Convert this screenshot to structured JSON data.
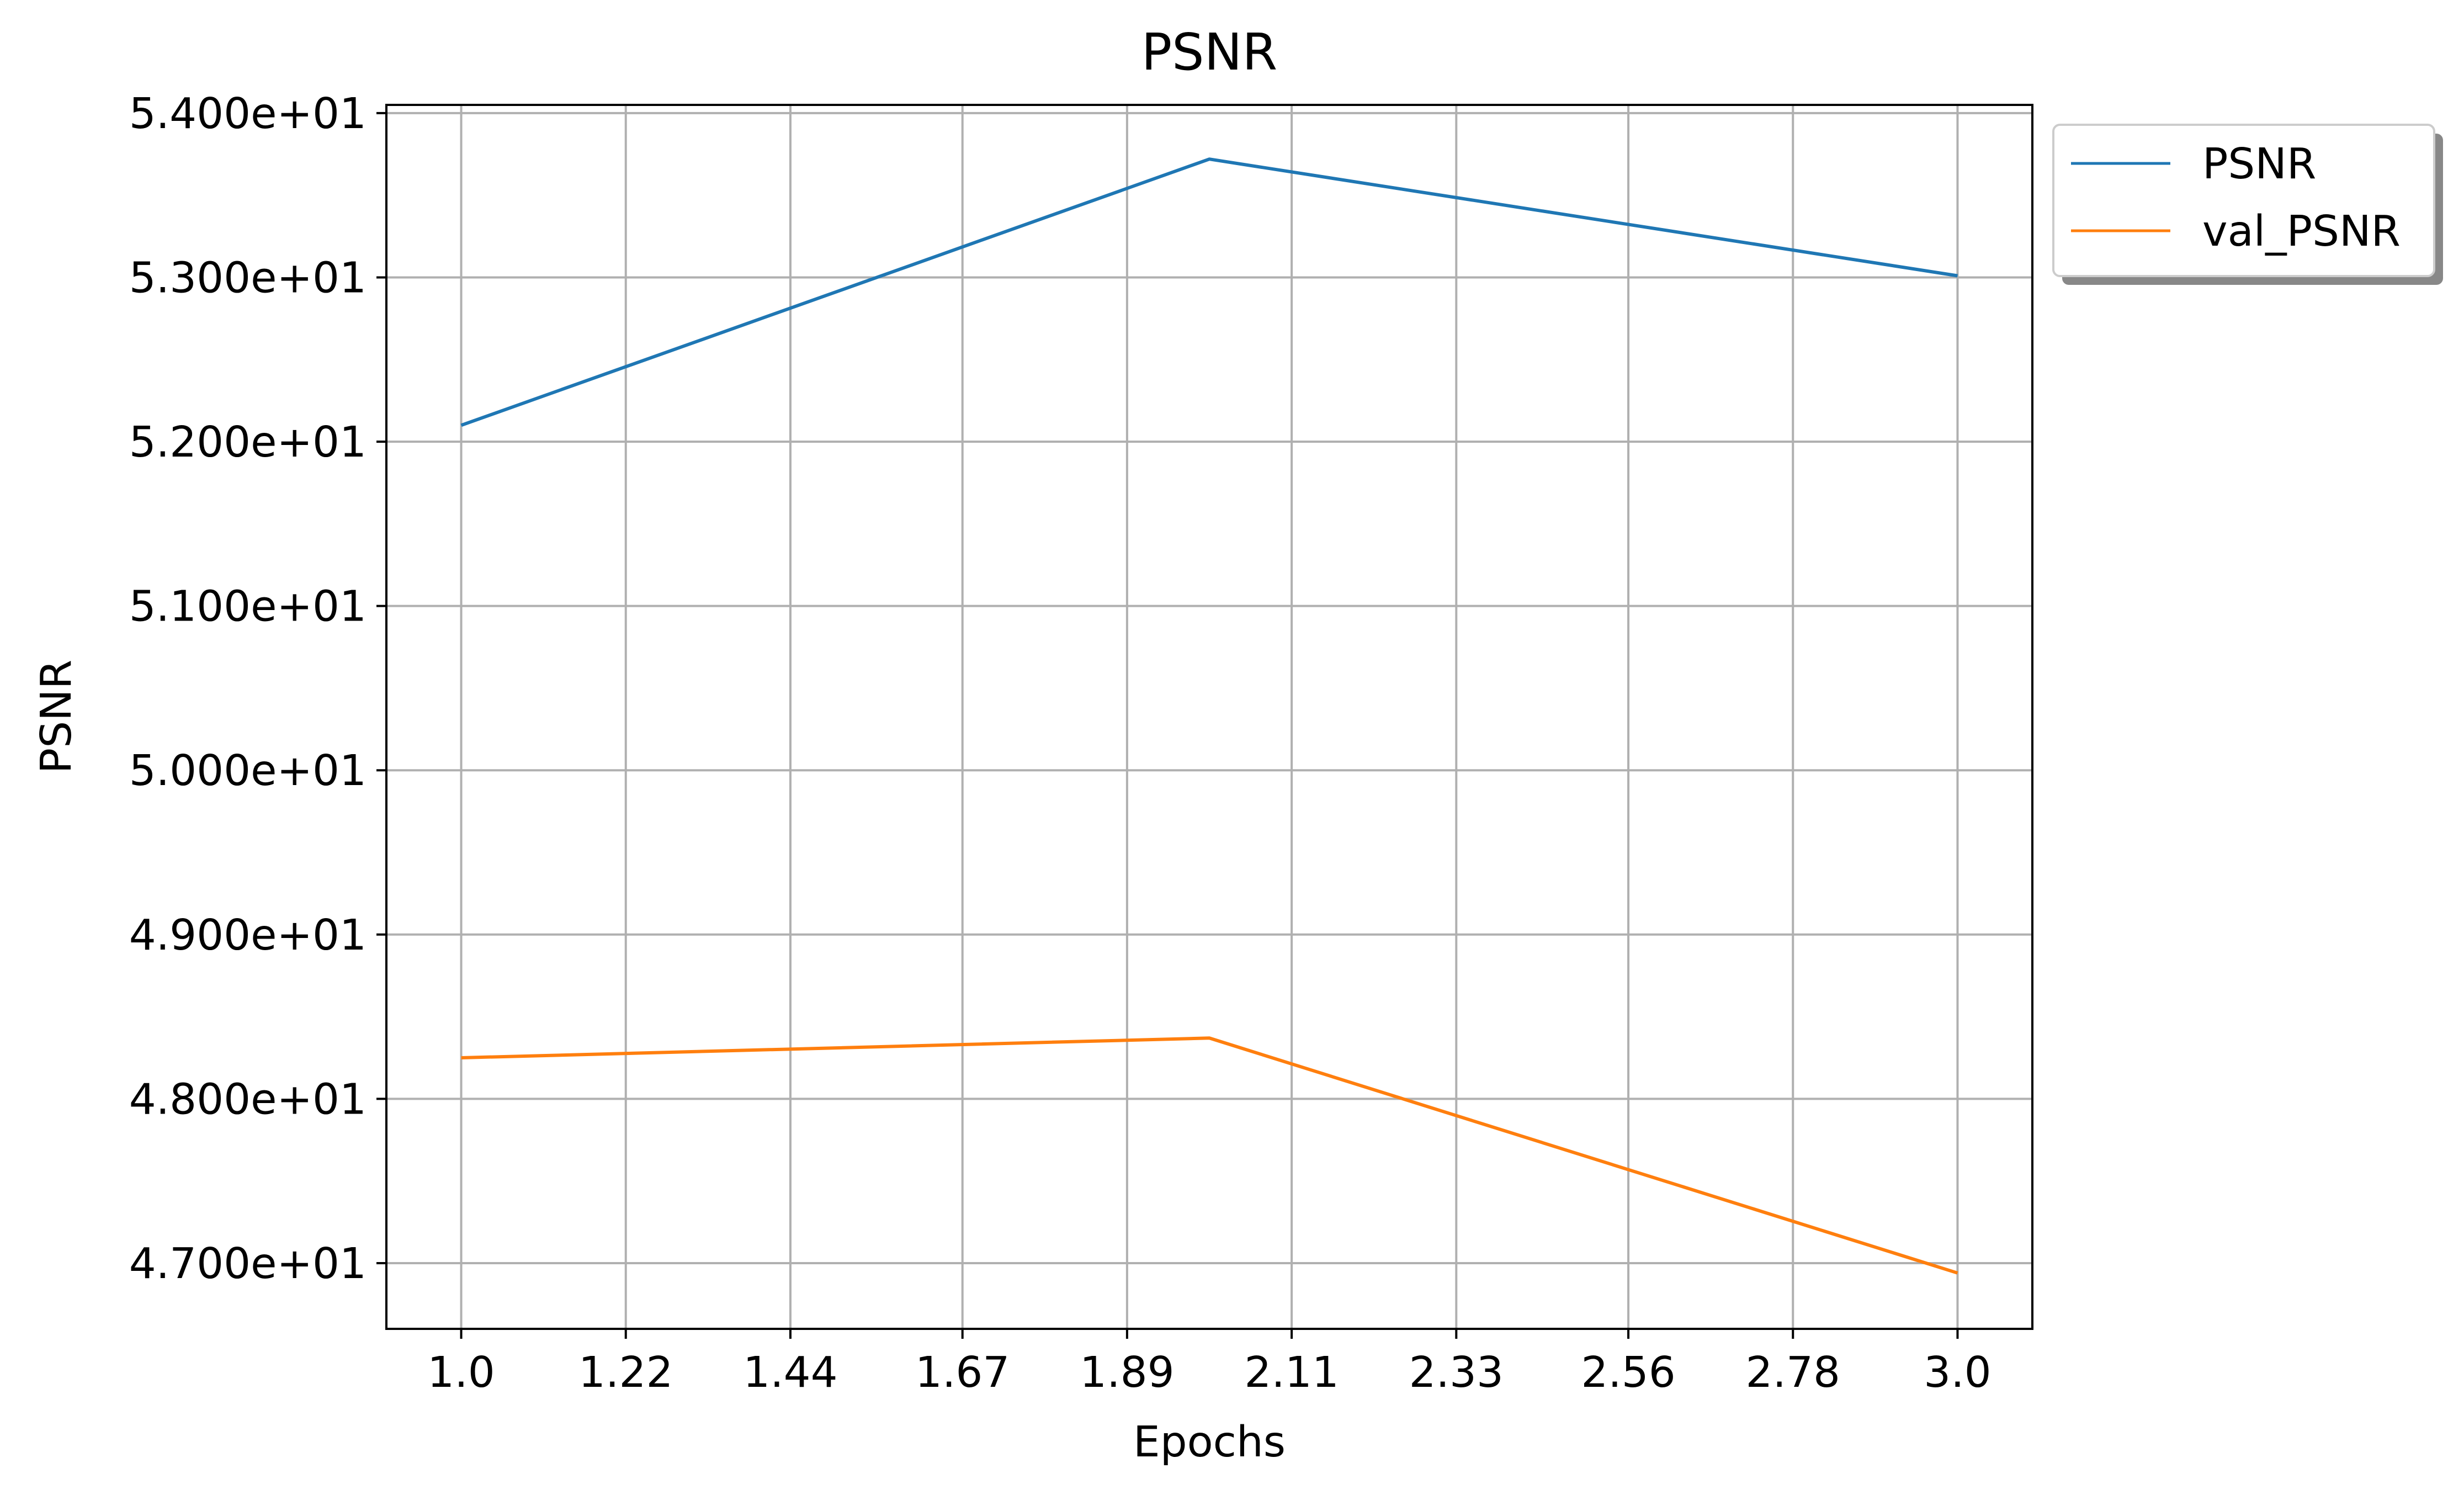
{
  "chart_data": {
    "type": "line",
    "title": "PSNR",
    "xlabel": "Epochs",
    "ylabel": "PSNR",
    "x": [
      1.0,
      2.0,
      3.0
    ],
    "xlim": [
      0.9,
      3.1
    ],
    "ylim": [
      46.6,
      54.05
    ],
    "x_ticks": [
      1.0,
      1.22,
      1.44,
      1.67,
      1.89,
      2.11,
      2.33,
      2.56,
      2.78,
      3.0
    ],
    "x_tick_labels": [
      "1.0",
      "1.22",
      "1.44",
      "1.67",
      "1.89",
      "2.11",
      "2.33",
      "2.56",
      "2.78",
      "3.0"
    ],
    "y_ticks": [
      47,
      48,
      49,
      50,
      51,
      52,
      53,
      54
    ],
    "y_tick_labels": [
      "4.700e+01",
      "4.800e+01",
      "4.900e+01",
      "5.000e+01",
      "5.100e+01",
      "5.200e+01",
      "5.300e+01",
      "5.400e+01"
    ],
    "grid": true,
    "legend_placement": "outside top-right",
    "series": [
      {
        "name": "PSNR",
        "color": "#1f77b4",
        "values": [
          52.1,
          53.72,
          53.01
        ]
      },
      {
        "name": "val_PSNR",
        "color": "#ff7f0e",
        "values": [
          48.25,
          48.37,
          46.94
        ]
      }
    ]
  }
}
